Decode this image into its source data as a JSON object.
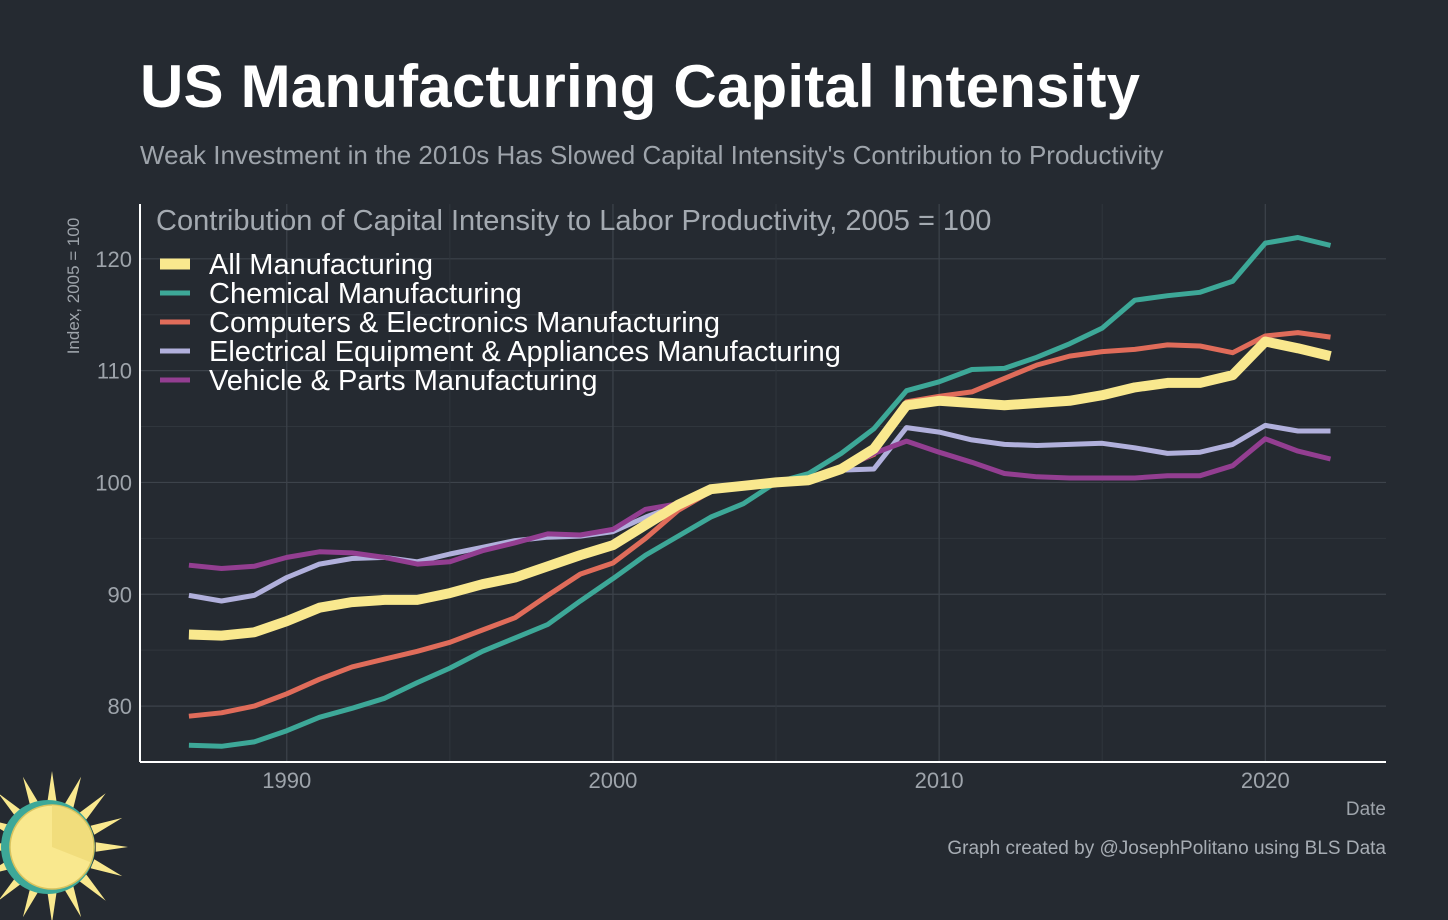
{
  "header": {
    "title": "US Manufacturing Capital Intensity",
    "subtitle": "Weak Investment in the 2010s Has Slowed Capital Intensity's Contribution to Productivity"
  },
  "footer": {
    "credit": "Graph created by @JosephPolitano using BLS Data"
  },
  "chart_data": {
    "type": "line",
    "title": "Contribution of Capital Intensity to Labor Productivity, 2005 = 100",
    "xlabel": "Date",
    "ylabel": "Index, 2005 = 100",
    "xlim": [
      1985.5,
      2023.7
    ],
    "ylim": [
      75,
      124.9
    ],
    "x_ticks": [
      1990,
      2000,
      2010,
      2020
    ],
    "y_ticks": [
      80,
      90,
      100,
      110,
      120
    ],
    "grid": true,
    "legend_position": "top-left",
    "x": [
      1987,
      1988,
      1989,
      1990,
      1991,
      1992,
      1993,
      1994,
      1995,
      1996,
      1997,
      1998,
      1999,
      2000,
      2001,
      2002,
      2003,
      2004,
      2005,
      2006,
      2007,
      2008,
      2009,
      2010,
      2011,
      2012,
      2013,
      2014,
      2015,
      2016,
      2017,
      2018,
      2019,
      2020,
      2021,
      2022
    ],
    "series": [
      {
        "name": "All Manufacturing",
        "color": "#f9e88e",
        "width": 10,
        "values": [
          86.4,
          86.3,
          86.6,
          87.6,
          88.8,
          89.3,
          89.5,
          89.5,
          90.1,
          90.9,
          91.5,
          92.5,
          93.5,
          94.4,
          96.2,
          98.0,
          99.4,
          99.7,
          100.0,
          100.2,
          101.2,
          103.0,
          106.9,
          107.3,
          107.1,
          106.9,
          107.1,
          107.3,
          107.8,
          108.5,
          108.9,
          108.9,
          109.6,
          112.6,
          112.0,
          111.3
        ]
      },
      {
        "name": "Chemical Manufacturing",
        "color": "#3da898",
        "width": 5,
        "values": [
          76.5,
          76.4,
          76.8,
          77.8,
          79.0,
          79.8,
          80.7,
          82.1,
          83.4,
          84.9,
          86.1,
          87.3,
          89.4,
          91.4,
          93.5,
          95.2,
          96.9,
          98.1,
          100.0,
          100.8,
          102.6,
          104.8,
          108.2,
          109.0,
          110.1,
          110.2,
          111.2,
          112.4,
          113.8,
          116.3,
          116.7,
          117.0,
          118.0,
          121.4,
          121.9,
          121.2
        ]
      },
      {
        "name": "Computers & Electronics Manufacturing",
        "color": "#e06c5a",
        "width": 5,
        "values": [
          79.1,
          79.4,
          80.0,
          81.1,
          82.4,
          83.5,
          84.2,
          84.9,
          85.7,
          86.8,
          87.9,
          89.9,
          91.8,
          92.8,
          95.0,
          97.5,
          99.2,
          99.6,
          100.0,
          100.4,
          101.3,
          102.5,
          107.2,
          107.7,
          108.1,
          109.3,
          110.5,
          111.3,
          111.7,
          111.9,
          112.3,
          112.2,
          111.6,
          113.1,
          113.4,
          113.0
        ]
      },
      {
        "name": "Electrical Equipment & Appliances Manufacturing",
        "color": "#b1b0dc",
        "width": 5,
        "values": [
          89.9,
          89.4,
          89.9,
          91.5,
          92.7,
          93.2,
          93.3,
          92.9,
          93.6,
          94.2,
          94.8,
          95.1,
          95.2,
          95.6,
          96.9,
          98.0,
          99.3,
          99.6,
          100.0,
          100.3,
          101.1,
          101.2,
          104.9,
          104.5,
          103.8,
          103.4,
          103.3,
          103.4,
          103.5,
          103.1,
          102.6,
          102.7,
          103.4,
          105.1,
          104.6,
          104.6
        ]
      },
      {
        "name": "Vehicle & Parts Manufacturing",
        "color": "#933e91",
        "width": 5,
        "values": [
          92.6,
          92.3,
          92.5,
          93.3,
          93.8,
          93.7,
          93.3,
          92.7,
          92.9,
          93.9,
          94.6,
          95.4,
          95.3,
          95.8,
          97.6,
          98.1,
          99.3,
          99.6,
          100.0,
          100.4,
          101.1,
          102.6,
          103.7,
          102.7,
          101.8,
          100.8,
          100.5,
          100.4,
          100.4,
          100.4,
          100.6,
          100.6,
          101.5,
          103.9,
          102.8,
          102.1
        ]
      }
    ]
  },
  "logo": {
    "sun_color": "#f9e88e",
    "ring_color": "#3da898"
  }
}
